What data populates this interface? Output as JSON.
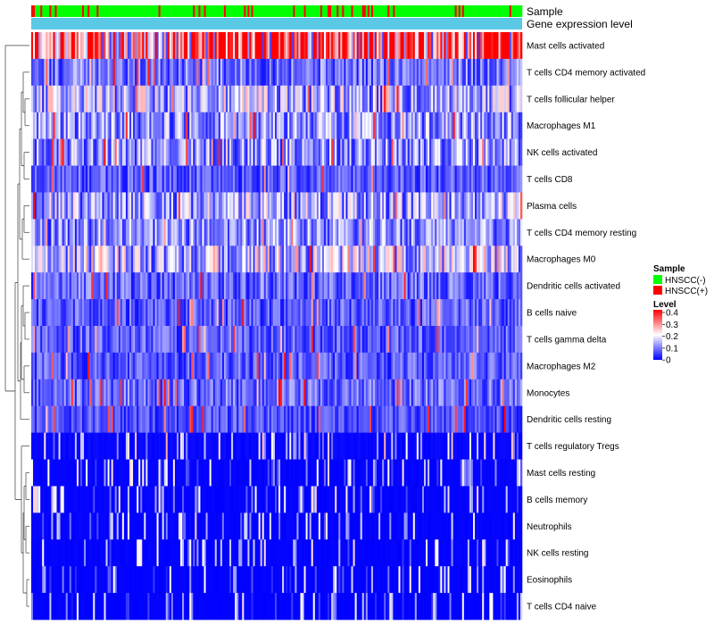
{
  "chart_data": {
    "type": "heatmap",
    "title": "",
    "annotation_rows": [
      {
        "name": "Sample"
      },
      {
        "name": "Gene expression level"
      }
    ],
    "row_labels": [
      "Mast cells activated",
      "T cells CD4 memory activated",
      "T cells follicular helper",
      "Macrophages M1",
      "NK cells activated",
      "T cells CD8",
      "Plasma cells",
      "T cells CD4 memory resting",
      "Macrophages M0",
      "Dendritic cells activated",
      "B cells naive",
      "T cells gamma delta",
      "Macrophages M2",
      "Monocytes",
      "Dendritic cells resting",
      "T cells regulatory  Tregs",
      "Mast cells resting",
      "B cells memory",
      "Neutrophils",
      "NK cells resting",
      "Eosinophils",
      "T cells CD4 naive"
    ],
    "row_mean_levels": [
      0.3,
      0.09,
      0.14,
      0.12,
      0.12,
      0.07,
      0.13,
      0.11,
      0.15,
      0.08,
      0.07,
      0.07,
      0.07,
      0.08,
      0.06,
      0.035,
      0.02,
      0.02,
      0.02,
      0.015,
      0.012,
      0.01
    ],
    "n_samples": 270,
    "positive_fraction": 0.14,
    "scale": {
      "min": 0,
      "max": 0.4,
      "ticks": [
        "0.4",
        "0.3",
        "0.2",
        "0.1",
        "0"
      ]
    },
    "legend": {
      "sample_title": "Sample",
      "sample_entries": [
        {
          "label": "HNSCC(-)",
          "color": "#00ff00"
        },
        {
          "label": "HNSCC(+)",
          "color": "#ff0000"
        }
      ],
      "level_title": "Level"
    },
    "colors": {
      "low": "#0000ff",
      "mid": "#ffffff",
      "high": "#ff0000",
      "gene_expression_bar": "#5bc8e6",
      "neg": "#00ff00",
      "pos": "#ff0000"
    }
  }
}
